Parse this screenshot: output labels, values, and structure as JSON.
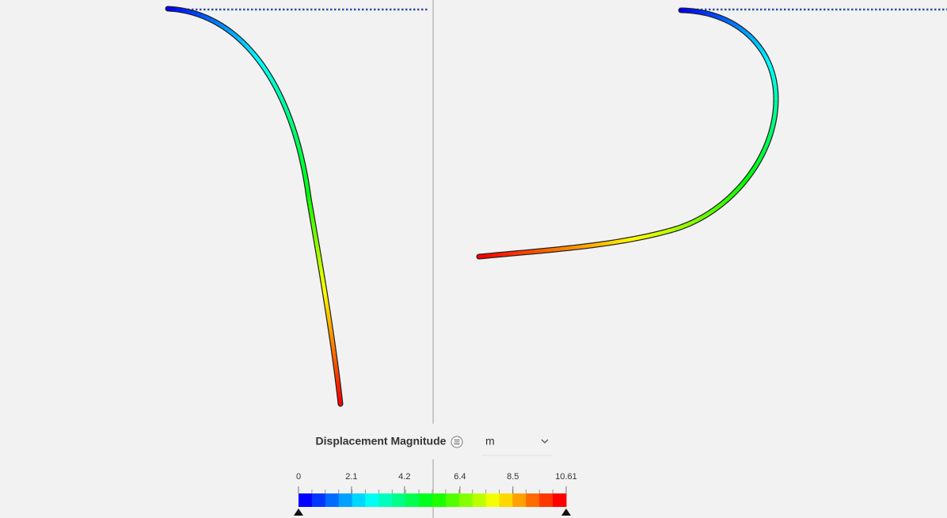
{
  "legend": {
    "title": "Displacement Magnitude",
    "unit": "m",
    "ticks": [
      0,
      2.1,
      4.2,
      6.4,
      8.5,
      10.61
    ],
    "colors": [
      "#0000ff",
      "#00ffff",
      "#00ff00",
      "#ffff00",
      "#ff0000"
    ]
  }
}
